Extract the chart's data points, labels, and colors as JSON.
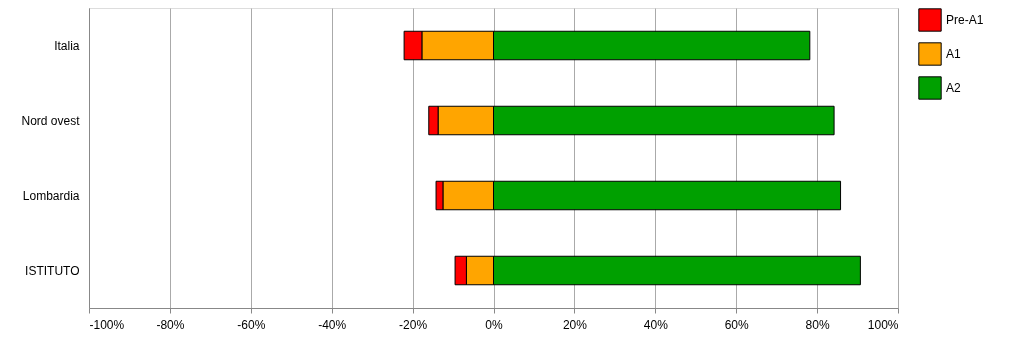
{
  "chart_data": {
    "type": "bar",
    "orientation": "horizontal",
    "stacked": true,
    "categories": [
      "Italia",
      "Nord ovest",
      "Lombardia",
      "ISTITUTO"
    ],
    "series": [
      {
        "name": "A2",
        "color": "#00a000",
        "values": [
          78.2,
          84.2,
          85.8,
          90.7
        ]
      },
      {
        "name": "A1",
        "color": "#ffa500",
        "values": [
          -17.7,
          -13.7,
          -12.5,
          -6.7
        ]
      },
      {
        "name": "Pre-A1",
        "color": "#ff0000",
        "values": [
          -4.4,
          -2.3,
          -1.7,
          -2.8
        ]
      }
    ],
    "xlim": [
      -100,
      100
    ],
    "xticks": [
      {
        "value": -100,
        "label": "-100%"
      },
      {
        "value": -80,
        "label": "-80%"
      },
      {
        "value": -60,
        "label": "-60%"
      },
      {
        "value": -40,
        "label": "-40%"
      },
      {
        "value": -20,
        "label": "-20%"
      },
      {
        "value": 0,
        "label": "0%"
      },
      {
        "value": 20,
        "label": "20%"
      },
      {
        "value": 40,
        "label": "40%"
      },
      {
        "value": 60,
        "label": "60%"
      },
      {
        "value": 80,
        "label": "80%"
      },
      {
        "value": 100,
        "label": "100%"
      }
    ],
    "grid": "x",
    "legend": "right"
  }
}
